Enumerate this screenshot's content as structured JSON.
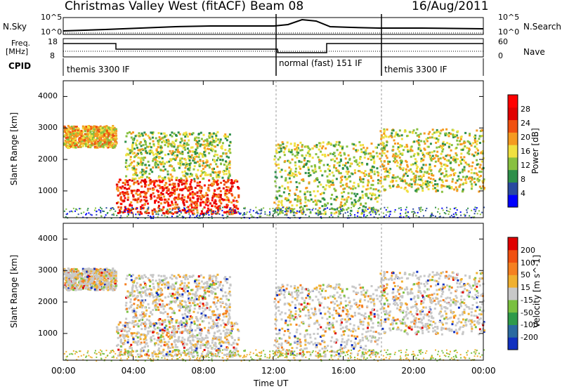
{
  "header": {
    "station": "Christmas Valley West (fitACF)",
    "beam": "Beam 08",
    "date": "16/Aug/2011"
  },
  "top_panels": {
    "nsky_label": "N.Sky",
    "nsky_ticks": [
      "10^5",
      "10^0"
    ],
    "nsearch_label": "N.Search",
    "freq_label_line1": "Freq.",
    "freq_label_line2": "[MHz]",
    "freq_ticks": [
      "18",
      "8"
    ],
    "nave_ticks": [
      "60",
      "0"
    ],
    "nave_label": "Nave",
    "cpid_label": "CPID",
    "cpid_modes": [
      "themis 3300 IF",
      "normal (fast) 151 IF",
      "themis 3300 IF"
    ]
  },
  "chart_data": [
    {
      "type": "heatmap",
      "panel": "power",
      "ylabel": "Slant Range [km]",
      "yticks": [
        "1000",
        "2000",
        "3000",
        "4000"
      ],
      "ylim": [
        150,
        4500
      ],
      "colorbar": {
        "label": "Power [dB]",
        "ticks": [
          "28",
          "24",
          "20",
          "16",
          "12",
          "8",
          "4"
        ],
        "colors": [
          "#0000ff",
          "#2a4aa0",
          "#2e8f4a",
          "#88c040",
          "#f0e040",
          "#f59a20",
          "#f05010",
          "#e00000",
          "#ff0000"
        ]
      },
      "regions_approx": [
        {
          "t_hr": [
            0,
            3
          ],
          "range_km": [
            2400,
            3100
          ],
          "dB": 18
        },
        {
          "t_hr": [
            3,
            10
          ],
          "range_km": [
            300,
            1400
          ],
          "dB": 26
        },
        {
          "t_hr": [
            3.5,
            9.5
          ],
          "range_km": [
            1400,
            2900
          ],
          "dB": 14
        },
        {
          "t_hr": [
            12,
            18
          ],
          "range_km": [
            300,
            2600
          ],
          "dB": 14
        },
        {
          "t_hr": [
            18,
            24
          ],
          "range_km": [
            1000,
            3000
          ],
          "dB": 15
        }
      ]
    },
    {
      "type": "heatmap",
      "panel": "velocity",
      "xlabel": "Time UT",
      "xticks": [
        "00:00",
        "04:00",
        "08:00",
        "12:00",
        "16:00",
        "20:00",
        "00:00"
      ],
      "ylabel": "Slant Range [km]",
      "yticks": [
        "1000",
        "2000",
        "3000",
        "4000"
      ],
      "ylim": [
        150,
        4500
      ],
      "colorbar": {
        "label": "Velocity [m s^-1]",
        "ticks": [
          "200",
          "100",
          "50",
          "15",
          "-15",
          "-50",
          "-100",
          "-200"
        ],
        "colors": [
          "#1030c0",
          "#2a6aa0",
          "#2e9a4a",
          "#7ac040",
          "#c8c8c8",
          "#f0b030",
          "#f58020",
          "#f05010",
          "#e00000"
        ]
      }
    }
  ]
}
